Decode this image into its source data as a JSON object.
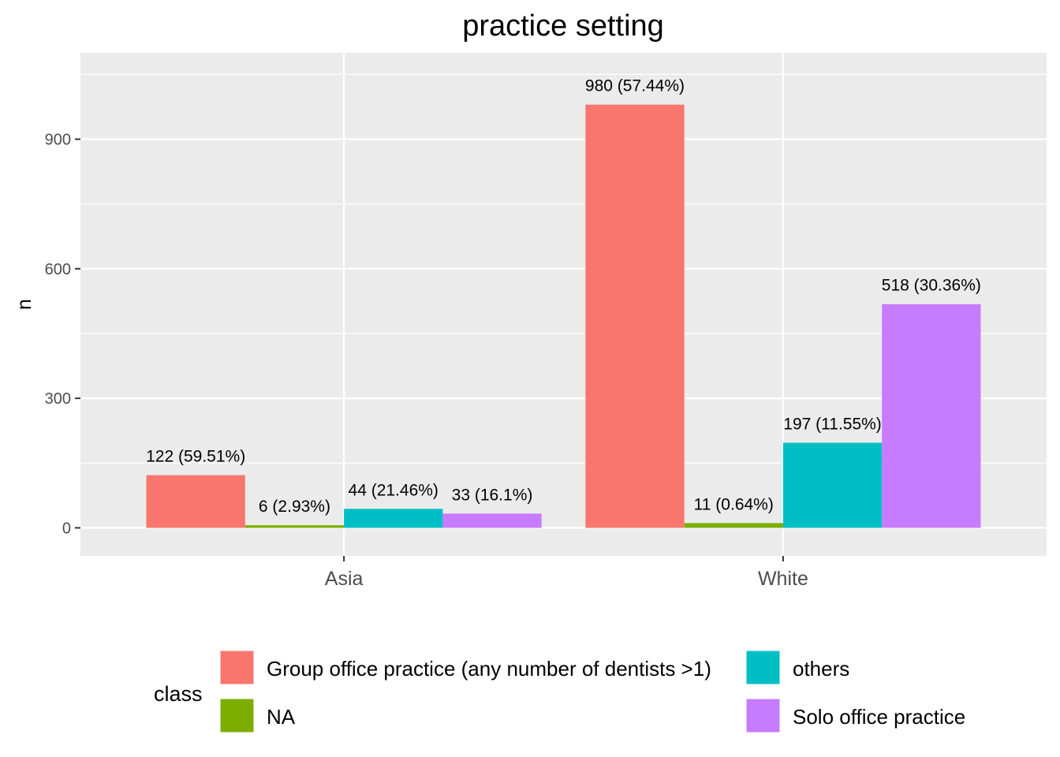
{
  "chart_data": {
    "type": "bar",
    "title": "practice setting",
    "xlabel": "",
    "ylabel": "n",
    "categories": [
      "Asia",
      "White"
    ],
    "ylim": [
      -65,
      1100
    ],
    "yticks": [
      0,
      300,
      600,
      900
    ],
    "grid": true,
    "legend_position": "bottom",
    "legend_title": "class",
    "series": [
      {
        "name": "Group office practice (any number of dentists >1)",
        "color": "#F8766D",
        "values": [
          122,
          980
        ],
        "labels": [
          "122 (59.51%)",
          "980 (57.44%)"
        ]
      },
      {
        "name": "NA",
        "color": "#7CAE00",
        "values": [
          6,
          11
        ],
        "labels": [
          "6 (2.93%)",
          "11 (0.64%)"
        ]
      },
      {
        "name": "others",
        "color": "#00BFC4",
        "values": [
          44,
          197
        ],
        "labels": [
          "44 (21.46%)",
          "197 (11.55%)"
        ]
      },
      {
        "name": "Solo office practice",
        "color": "#C77CFF",
        "values": [
          33,
          518
        ],
        "labels": [
          "33 (16.1%)",
          "518 (30.36%)"
        ]
      }
    ]
  }
}
